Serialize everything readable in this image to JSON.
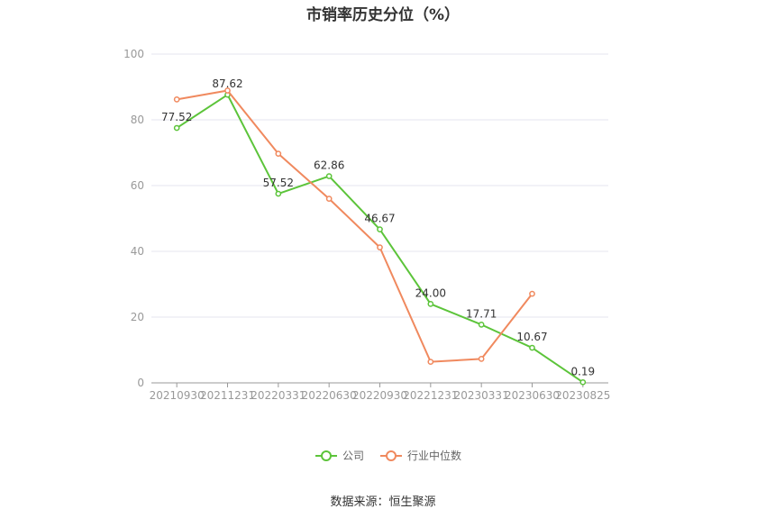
{
  "title": "市销率历史分位（%）",
  "source": "数据来源：恒生聚源",
  "colors": {
    "company": "#5cc43a",
    "industry": "#f0895e",
    "grid": "#e6e6ef",
    "axis": "#999999"
  },
  "chart_data": {
    "type": "line",
    "title": "市销率历史分位（%）",
    "categories": [
      "20210930",
      "20211231",
      "20220331",
      "20220630",
      "20220930",
      "20221231",
      "20230331",
      "20230630",
      "20230825"
    ],
    "ylim": [
      0,
      100
    ],
    "yticks": [
      0,
      20,
      40,
      60,
      80,
      100
    ],
    "grid": true,
    "legend": "bottom",
    "series": [
      {
        "name": "公司",
        "color": "#5cc43a",
        "values": [
          77.52,
          87.62,
          57.52,
          62.86,
          46.67,
          24.0,
          17.71,
          10.67,
          0.19
        ],
        "labels": [
          "77.52",
          "87.62",
          "57.52",
          "62.86",
          "46.67",
          "24.00",
          "17.71",
          "10.67",
          "0.19"
        ]
      },
      {
        "name": "行业中位数",
        "color": "#f0895e",
        "values": [
          86.2,
          88.9,
          69.7,
          56.0,
          41.2,
          6.4,
          7.3,
          27.1,
          null
        ]
      }
    ]
  }
}
